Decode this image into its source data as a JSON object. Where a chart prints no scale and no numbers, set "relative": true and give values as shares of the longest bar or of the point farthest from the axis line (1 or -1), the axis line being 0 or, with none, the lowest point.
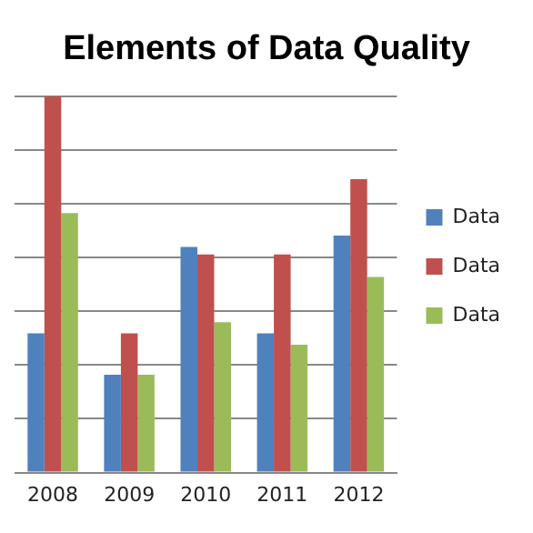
{
  "chart_data": {
    "type": "bar",
    "title": "Elements of Data Quality",
    "categories": [
      "2008",
      "2009",
      "2010",
      "2011",
      "2012"
    ],
    "relative": true,
    "grid": "y",
    "legend": "right",
    "series": [
      {
        "name": "Data",
        "color": "#4f81bd",
        "values": [
          0.37,
          0.26,
          0.6,
          0.37,
          0.63
        ]
      },
      {
        "name": "Data",
        "color": "#c0504d",
        "values": [
          1,
          0.37,
          0.58,
          0.58,
          0.78
        ]
      },
      {
        "name": "Data",
        "color": "#9bbb59",
        "values": [
          0.69,
          0.26,
          0.4,
          0.34,
          0.52
        ]
      }
    ]
  }
}
